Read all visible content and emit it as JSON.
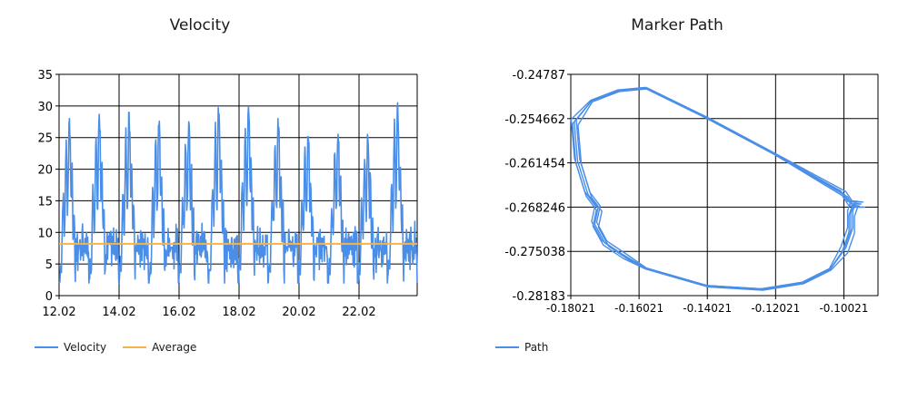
{
  "colors": {
    "velocity": "#4a8ee8",
    "average": "#f5b34a",
    "path": "#4a8ee8",
    "grid": "#000000"
  },
  "chart_data": [
    {
      "type": "line",
      "title": "Velocity",
      "xlabel": "",
      "ylabel": "",
      "x_tick_labels": [
        "12.02",
        "14.02",
        "16.02",
        "18.02",
        "20.02",
        "22.02"
      ],
      "y_ticks": [
        0,
        5,
        10,
        15,
        20,
        25,
        30,
        35
      ],
      "ylim": [
        0,
        35
      ],
      "grid": true,
      "legend": "bottom-left",
      "series": [
        {
          "name": "Velocity",
          "cycle_peaks": [
            28,
            29.5,
            29,
            28,
            27.5,
            30,
            30,
            28,
            25.5,
            25.5,
            25.5,
            30.5
          ]
        },
        {
          "name": "Average",
          "constant": 8.2
        }
      ]
    },
    {
      "type": "line",
      "title": "Marker Path",
      "xlabel": "",
      "ylabel": "",
      "x_tick_labels": [
        "-0.18021",
        "-0.16021",
        "-0.14021",
        "-0.12021",
        "-0.10021"
      ],
      "y_tick_labels": [
        "-0.24787",
        "-0.254662",
        "-0.261454",
        "-0.268246",
        "-0.275038",
        "-0.28183"
      ],
      "xlim": [
        -0.18021,
        -0.09021
      ],
      "ylim": [
        -0.28183,
        -0.24787
      ],
      "grid": true,
      "legend": "bottom-left",
      "series": [
        {
          "name": "Path",
          "x": [
            -0.15821,
            -0.16621,
            -0.17421,
            -0.17921,
            -0.17821,
            -0.17521,
            -0.17221,
            -0.17321,
            -0.17021,
            -0.16421,
            -0.15821,
            -0.14021,
            -0.12421,
            -0.11221,
            -0.10421,
            -0.10021,
            -0.09821,
            -0.09821,
            -0.09721,
            -0.09521,
            -0.09821,
            -0.10021,
            -0.12021,
            -0.14021,
            -0.15821
          ],
          "y": [
            -0.24997,
            -0.25037,
            -0.25197,
            -0.25517,
            -0.26117,
            -0.26627,
            -0.26837,
            -0.27087,
            -0.27377,
            -0.27587,
            -0.27767,
            -0.28037,
            -0.28087,
            -0.27987,
            -0.27777,
            -0.27477,
            -0.27177,
            -0.26917,
            -0.26767,
            -0.26777,
            -0.26777,
            -0.26617,
            -0.26017,
            -0.25457,
            -0.24997
          ]
        }
      ]
    }
  ],
  "legends": {
    "velocity": [
      {
        "label": "Velocity"
      },
      {
        "label": "Average"
      }
    ],
    "path": [
      {
        "label": "Path"
      }
    ]
  }
}
